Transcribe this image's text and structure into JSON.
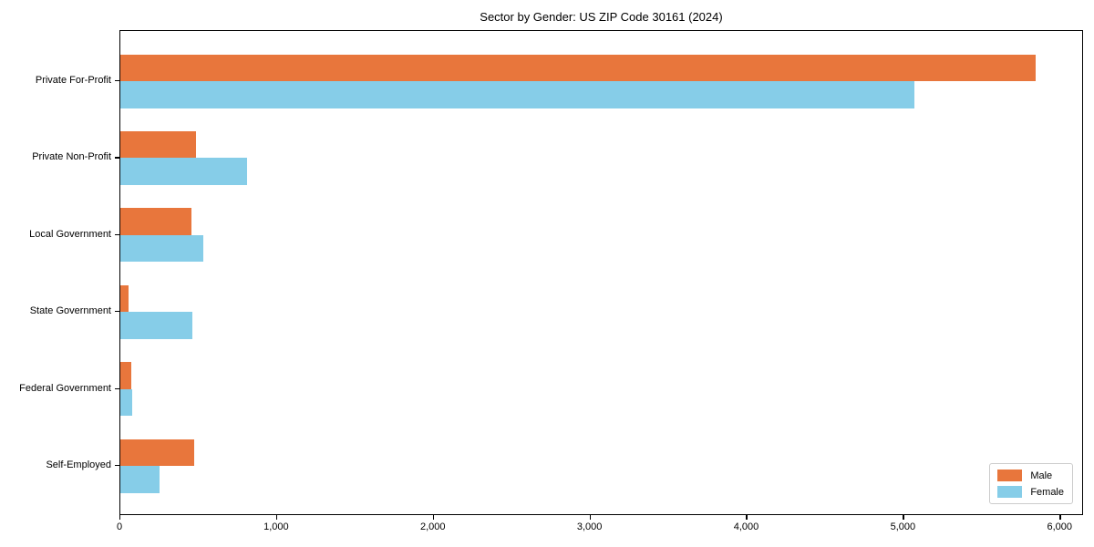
{
  "chart_data": {
    "type": "bar",
    "orientation": "horizontal",
    "title": "Sector by Gender: US ZIP Code 30161 (2024)",
    "categories": [
      "Private For-Profit",
      "Private Non-Profit",
      "Local Government",
      "State Government",
      "Federal Government",
      "Self-Employed"
    ],
    "series": [
      {
        "name": "Male",
        "color": "#e8763c",
        "values": [
          5840,
          485,
          455,
          50,
          70,
          470
        ]
      },
      {
        "name": "Female",
        "color": "#86cde8",
        "values": [
          5070,
          810,
          530,
          460,
          75,
          250
        ]
      }
    ],
    "xlabel": "",
    "ylabel": "",
    "xlim": [
      0,
      6150
    ],
    "x_ticks": [
      0,
      1000,
      2000,
      3000,
      4000,
      5000,
      6000
    ],
    "x_tick_labels": [
      "0",
      "1,000",
      "2,000",
      "3,000",
      "4,000",
      "5,000",
      "6,000"
    ],
    "legend_position": "lower right",
    "grid": false
  }
}
